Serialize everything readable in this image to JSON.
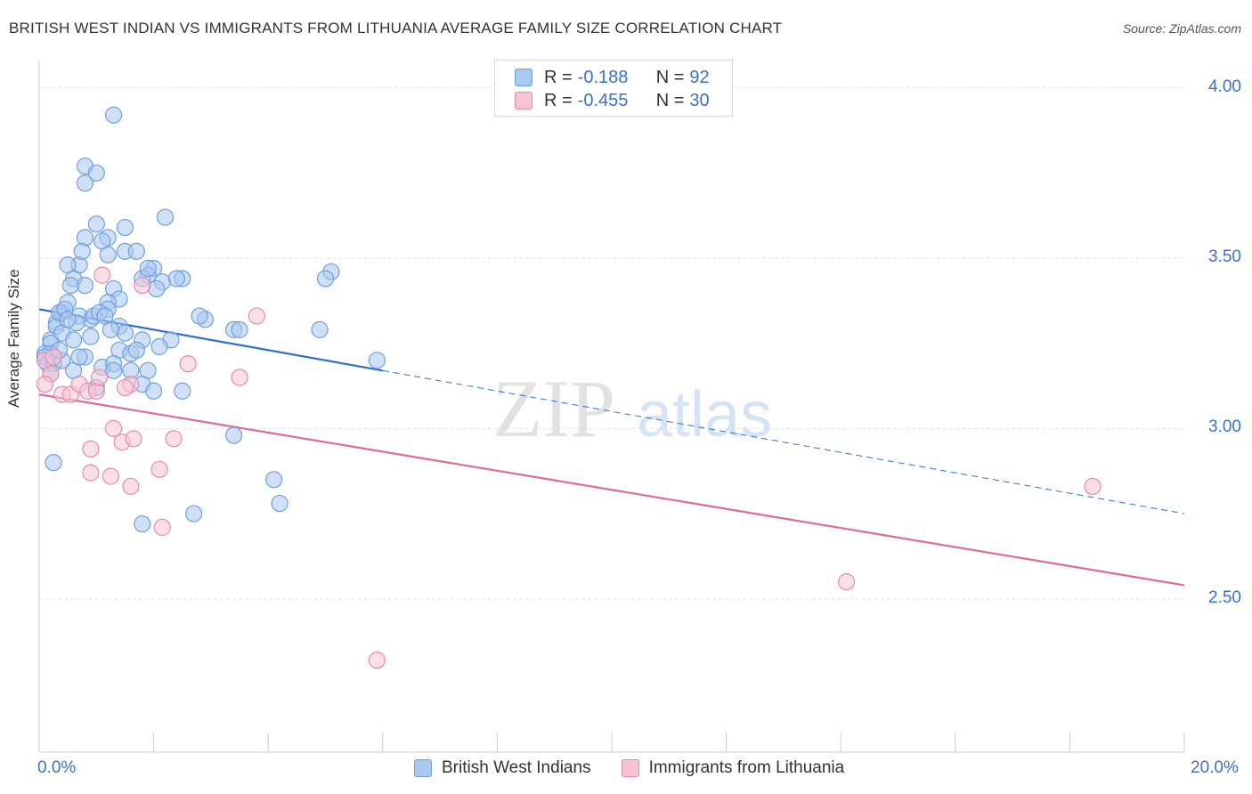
{
  "title": "BRITISH WEST INDIAN VS IMMIGRANTS FROM LITHUANIA AVERAGE FAMILY SIZE CORRELATION CHART",
  "source": "Source: ZipAtlas.com",
  "watermark": {
    "zip": "ZIP",
    "atlas": "atlas"
  },
  "legend": {
    "r_label": "R =",
    "n_label": "N =",
    "rows": [
      {
        "r": "-0.188",
        "n": "92",
        "color": "#a9c8f0",
        "border": "#6f9fdd"
      },
      {
        "r": "-0.455",
        "n": "30",
        "color": "#f7c4d6",
        "border": "#e98aab"
      }
    ]
  },
  "chart_data": {
    "type": "scatter",
    "title": "BRITISH WEST INDIAN VS IMMIGRANTS FROM LITHUANIA AVERAGE FAMILY SIZE CORRELATION CHART",
    "xlabel": "",
    "ylabel": "Average Family Size",
    "xlim": [
      0,
      20
    ],
    "ylim": [
      2.05,
      4.08
    ],
    "x_tick_labels": [
      "0.0%",
      "20.0%"
    ],
    "y_ticks": [
      2.5,
      3.0,
      3.5,
      4.0
    ],
    "y_tick_labels": [
      "2.50",
      "3.00",
      "3.50",
      "4.00"
    ],
    "grid": true,
    "legend_position": "top-center",
    "series": [
      {
        "name": "British West Indians",
        "color": "#a9c8f0",
        "stroke": "#6f9fdd",
        "line_color": "#2d6fd0",
        "trend": {
          "x": [
            0.0,
            6.0
          ],
          "y": [
            3.35,
            3.17
          ]
        },
        "trend_ext": {
          "x": [
            6.0,
            20.0
          ],
          "y": [
            3.17,
            2.75
          ]
        },
        "x": [
          1.3,
          0.8,
          0.8,
          1.0,
          1.0,
          1.5,
          2.2,
          1.2,
          1.5,
          1.1,
          1.7,
          0.8,
          0.7,
          0.5,
          2.0,
          2.5,
          2.4,
          1.9,
          0.6,
          0.8,
          1.3,
          1.4,
          1.2,
          0.2,
          0.3,
          0.4,
          0.5,
          0.9,
          1.2,
          0.7,
          0.3,
          0.2,
          0.4,
          0.6,
          0.9,
          1.4,
          1.5,
          1.8,
          2.3,
          0.8,
          0.1,
          0.2,
          1.4,
          0.6,
          1.6,
          0.7,
          0.1,
          0.15,
          0.25,
          0.4,
          1.1,
          1.3,
          1.7,
          2.1,
          2.9,
          2.8,
          3.4,
          3.5,
          4.9,
          5.1,
          5.0,
          5.9,
          1.3,
          1.6,
          1.9,
          1.0,
          1.8,
          2.0,
          2.5,
          0.35,
          0.45,
          0.65,
          0.95,
          1.05,
          1.25,
          1.15,
          2.15,
          2.05,
          1.8,
          1.2,
          0.55,
          0.75,
          0.5,
          1.9,
          3.4,
          4.1,
          4.2,
          2.7,
          1.8,
          0.25,
          0.2,
          0.35
        ],
        "y": [
          3.92,
          3.77,
          3.72,
          3.75,
          3.6,
          3.59,
          3.62,
          3.56,
          3.52,
          3.55,
          3.52,
          3.56,
          3.48,
          3.48,
          3.47,
          3.44,
          3.44,
          3.45,
          3.44,
          3.42,
          3.41,
          3.38,
          3.37,
          3.26,
          3.31,
          3.34,
          3.37,
          3.32,
          3.35,
          3.33,
          3.3,
          3.25,
          3.28,
          3.26,
          3.27,
          3.3,
          3.28,
          3.26,
          3.26,
          3.21,
          3.22,
          3.22,
          3.23,
          3.17,
          3.22,
          3.21,
          3.21,
          3.19,
          3.19,
          3.2,
          3.18,
          3.19,
          3.23,
          3.24,
          3.32,
          3.33,
          3.29,
          3.29,
          3.29,
          3.46,
          3.44,
          3.2,
          3.17,
          3.17,
          3.17,
          3.12,
          3.13,
          3.11,
          3.11,
          3.34,
          3.35,
          3.31,
          3.33,
          3.34,
          3.29,
          3.33,
          3.43,
          3.41,
          3.44,
          3.51,
          3.42,
          3.52,
          3.32,
          3.47,
          2.98,
          2.85,
          2.78,
          2.75,
          2.72,
          2.9,
          3.16,
          3.23
        ],
        "sizes": [
          9,
          9,
          9,
          9,
          9,
          9,
          9,
          9,
          9,
          9,
          9,
          9,
          9,
          9,
          9,
          9,
          9,
          9,
          9,
          9,
          9,
          9,
          9,
          9,
          9,
          9,
          9,
          9,
          9,
          9,
          9,
          9,
          9,
          9,
          9,
          9,
          9,
          9,
          9,
          9,
          9,
          9,
          9,
          9,
          9,
          9,
          9,
          9,
          9,
          9,
          9,
          9,
          9,
          9,
          9,
          9,
          9,
          9,
          9,
          9,
          9,
          9,
          9,
          9,
          9,
          9,
          9,
          9,
          9,
          9,
          9,
          9,
          9,
          9,
          9,
          9,
          9,
          9,
          9,
          9,
          9,
          9,
          9,
          9,
          9,
          9,
          9,
          9,
          9,
          9,
          9,
          9
        ]
      },
      {
        "name": "Immigrants from Lithuania",
        "color": "#f7c4d6",
        "stroke": "#e98aab",
        "line_color": "#e06a97",
        "trend": {
          "x": [
            0.0,
            20.0
          ],
          "y": [
            3.1,
            2.54
          ]
        },
        "x": [
          1.1,
          1.8,
          3.8,
          0.1,
          0.25,
          0.4,
          0.55,
          0.7,
          0.85,
          1.0,
          1.6,
          1.5,
          2.6,
          3.5,
          1.3,
          0.9,
          1.45,
          1.65,
          2.35,
          0.9,
          1.25,
          1.6,
          2.1,
          2.15,
          1.05,
          18.4,
          14.1,
          5.9,
          0.2,
          0.1
        ],
        "y": [
          3.45,
          3.42,
          3.33,
          3.2,
          3.21,
          3.1,
          3.1,
          3.13,
          3.11,
          3.11,
          3.13,
          3.12,
          3.19,
          3.15,
          3.0,
          2.94,
          2.96,
          2.97,
          2.97,
          2.87,
          2.86,
          2.83,
          2.88,
          2.71,
          3.15,
          2.83,
          2.55,
          2.32,
          3.16,
          3.13
        ],
        "sizes": [
          9,
          9,
          9,
          9,
          9,
          9,
          9,
          9,
          9,
          9,
          9,
          9,
          9,
          9,
          9,
          9,
          9,
          9,
          9,
          9,
          9,
          9,
          9,
          9,
          9,
          9,
          9,
          9,
          9,
          9
        ]
      }
    ]
  }
}
